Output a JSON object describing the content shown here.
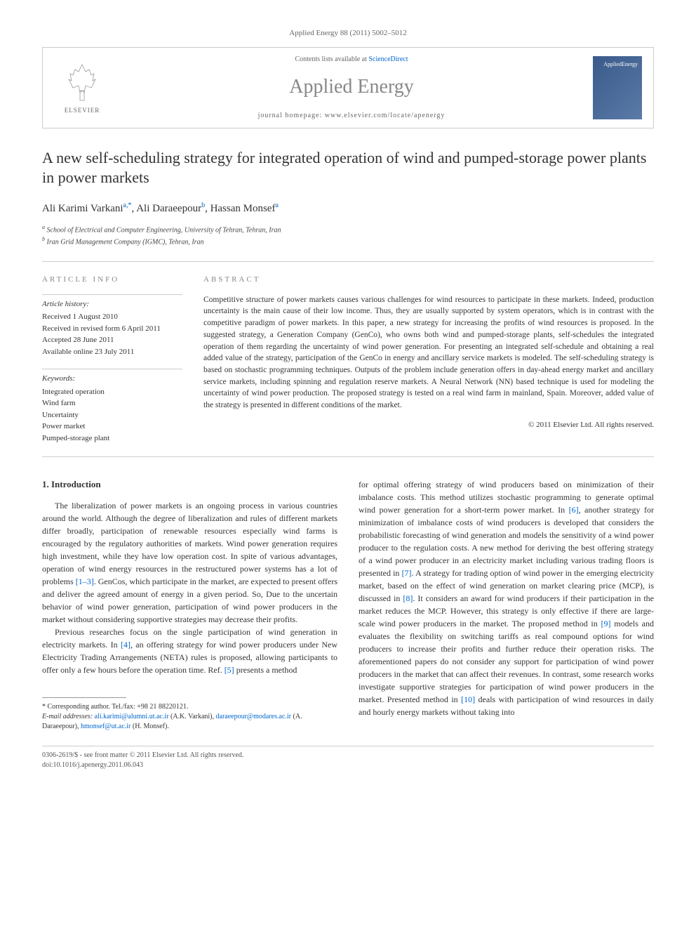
{
  "journal_ref": "Applied Energy 88 (2011) 5002–5012",
  "header": {
    "elsevier_label": "ELSEVIER",
    "contents_prefix": "Contents lists available at ",
    "contents_link": "ScienceDirect",
    "journal_name": "Applied Energy",
    "homepage_prefix": "journal homepage: ",
    "homepage_url": "www.elsevier.com/locate/apenergy",
    "cover_text": "AppliedEnergy"
  },
  "title": "A new self-scheduling strategy for integrated operation of wind and pumped-storage power plants in power markets",
  "authors": [
    {
      "name": "Ali Karimi Varkani",
      "marks": "a,*"
    },
    {
      "name": "Ali Daraeepour",
      "marks": "b"
    },
    {
      "name": "Hassan Monsef",
      "marks": "a"
    }
  ],
  "affiliations": [
    {
      "mark": "a",
      "text": "School of Electrical and Computer Engineering, University of Tehran, Tehran, Iran"
    },
    {
      "mark": "b",
      "text": "Iran Grid Management Company (IGMC), Tehran, Iran"
    }
  ],
  "article_info": {
    "heading": "ARTICLE INFO",
    "history_label": "Article history:",
    "history_items": [
      "Received 1 August 2010",
      "Received in revised form 6 April 2011",
      "Accepted 28 June 2011",
      "Available online 23 July 2011"
    ],
    "keywords_label": "Keywords:",
    "keywords": [
      "Integrated operation",
      "Wind farm",
      "Uncertainty",
      "Power market",
      "Pumped-storage plant"
    ]
  },
  "abstract": {
    "heading": "ABSTRACT",
    "text": "Competitive structure of power markets causes various challenges for wind resources to participate in these markets. Indeed, production uncertainty is the main cause of their low income. Thus, they are usually supported by system operators, which is in contrast with the competitive paradigm of power markets. In this paper, a new strategy for increasing the profits of wind resources is proposed. In the suggested strategy, a Generation Company (GenCo), who owns both wind and pumped-storage plants, self-schedules the integrated operation of them regarding the uncertainty of wind power generation. For presenting an integrated self-schedule and obtaining a real added value of the strategy, participation of the GenCo in energy and ancillary service markets is modeled. The self-scheduling strategy is based on stochastic programming techniques. Outputs of the problem include generation offers in day-ahead energy market and ancillary service markets, including spinning and regulation reserve markets. A Neural Network (NN) based technique is used for modeling the uncertainty of wind power production. The proposed strategy is tested on a real wind farm in mainland, Spain. Moreover, added value of the strategy is presented in different conditions of the market.",
    "copyright": "© 2011 Elsevier Ltd. All rights reserved."
  },
  "body": {
    "section_heading": "1. Introduction",
    "col1_paras": [
      "The liberalization of power markets is an ongoing process in various countries around the world. Although the degree of liberalization and rules of different markets differ broadly, participation of renewable resources especially wind farms is encouraged by the regulatory authorities of markets. Wind power generation requires high investment, while they have low operation cost. In spite of various advantages, operation of wind energy resources in the restructured power systems has a lot of problems [1–3]. GenCos, which participate in the market, are expected to present offers and deliver the agreed amount of energy in a given period. So, Due to the uncertain behavior of wind power generation, participation of wind power producers in the market without considering supportive strategies may decrease their profits.",
      "Previous researches focus on the single participation of wind generation in electricity markets. In [4], an offering strategy for wind power producers under New Electricity Trading Arrangements (NETA) rules is proposed, allowing participants to offer only a few hours before the operation time. Ref. [5] presents a method"
    ],
    "col2_paras": [
      "for optimal offering strategy of wind producers based on minimization of their imbalance costs. This method utilizes stochastic programming to generate optimal wind power generation for a short-term power market. In [6], another strategy for minimization of imbalance costs of wind producers is developed that considers the probabilistic forecasting of wind generation and models the sensitivity of a wind power producer to the regulation costs. A new method for deriving the best offering strategy of a wind power producer in an electricity market including various trading floors is presented in [7]. A strategy for trading option of wind power in the emerging electricity market, based on the effect of wind generation on market clearing price (MCP), is discussed in [8]. It considers an award for wind producers if their participation in the market reduces the MCP. However, this strategy is only effective if there are large-scale wind power producers in the market. The proposed method in [9] models and evaluates the flexibility on switching tariffs as real compound options for wind producers to increase their profits and further reduce their operation risks. The aforementioned papers do not consider any support for participation of wind power producers in the market that can affect their revenues. In contrast, some research works investigate supportive strategies for participation of wind power producers in the market. Presented method in [10] deals with participation of wind resources in daily and hourly energy markets without taking into"
    ]
  },
  "footnotes": {
    "corresponding": "* Corresponding author. Tel./fax: +98 21 88220121.",
    "email_label": "E-mail addresses:",
    "emails": [
      {
        "addr": "ali.karimi@alumni.ut.ac.ir",
        "who": "(A.K. Varkani)"
      },
      {
        "addr": "daraeepour@modares.ac.ir",
        "who": "(A. Daraeepour)"
      },
      {
        "addr": "hmonsef@ut.ac.ir",
        "who": "(H. Monsef)"
      }
    ]
  },
  "footer": {
    "issn": "0306-2619/$ - see front matter © 2011 Elsevier Ltd. All rights reserved.",
    "doi": "doi:10.1016/j.apenergy.2011.06.043"
  },
  "colors": {
    "link": "#0066cc",
    "text": "#333333",
    "muted": "#888888",
    "border": "#cccccc"
  }
}
